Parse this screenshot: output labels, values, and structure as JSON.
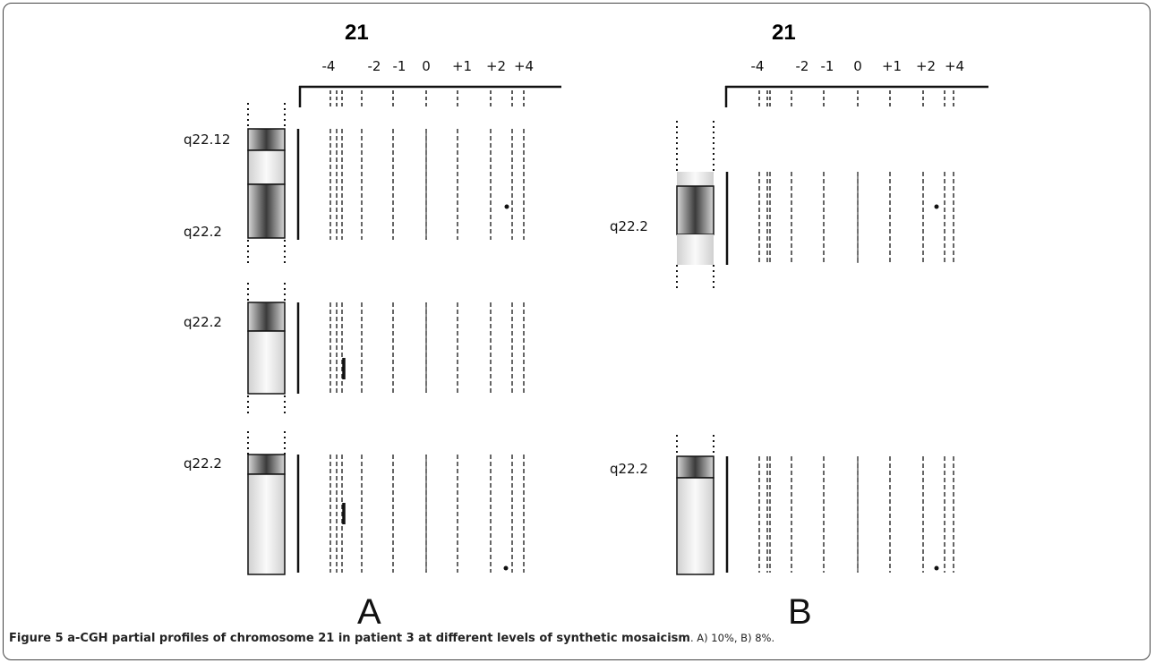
{
  "figure": {
    "caption_label": "Figure 5",
    "caption_title": " a-CGH partial profiles of chromosome 21 in patient 3 at different levels of synthetic mosaicism",
    "caption_rest": ". A) 10%, B) 8%."
  },
  "chart_data": [
    {
      "type": "other",
      "panel": "A",
      "title": "21",
      "axis_ticks": [
        "-4",
        "-2",
        "-1",
        "0",
        "+1",
        "+2",
        "+4"
      ],
      "profiles": [
        {
          "bands": [
            "q22.12",
            "q22.2"
          ]
        },
        {
          "bands": [
            "q22.2"
          ]
        },
        {
          "bands": [
            "q22.2"
          ]
        }
      ]
    },
    {
      "type": "other",
      "panel": "B",
      "title": "21",
      "axis_ticks": [
        "-4",
        "-2",
        "-1",
        "0",
        "+1",
        "+2",
        "+4"
      ],
      "profiles": [
        {
          "bands": [
            "q22.2"
          ]
        },
        {
          "bands": [
            "q22.2"
          ]
        }
      ]
    }
  ]
}
